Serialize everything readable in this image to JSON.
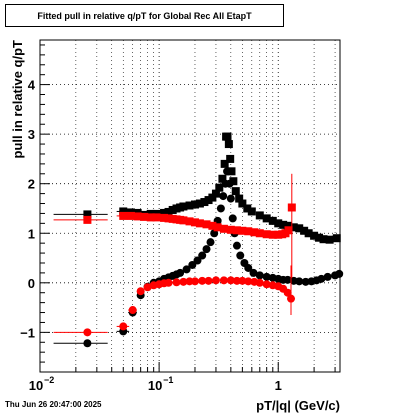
{
  "timestamp": "Thu Jun 26 20:47:00 2025",
  "chart_data": {
    "type": "scatter",
    "title": "Fitted pull in relative q/pT for Global Rec All EtapT",
    "xlabel": "pT/|q| (GeV/c)",
    "ylabel": "pull in relative q/pT",
    "xscale": "log",
    "xlim": [
      0.01,
      3.3
    ],
    "ylim": [
      -1.8,
      4.9
    ],
    "grid": true,
    "x_tick_labels": [
      {
        "value": 0.01,
        "base": "10",
        "exp": "−2"
      },
      {
        "value": 0.1,
        "base": "10",
        "exp": "−1"
      },
      {
        "value": 1,
        "base": "1",
        "exp": ""
      }
    ],
    "y_ticks": [
      -1,
      0,
      1,
      2,
      3,
      4
    ],
    "series": [
      {
        "color": "#000000",
        "marker": "square",
        "points": [
          [
            0.025,
            1.38,
            0.012
          ],
          [
            0.05,
            1.44,
            0.006
          ],
          [
            0.058,
            1.42,
            0.005
          ],
          [
            0.066,
            1.41,
            0.004
          ],
          [
            0.075,
            1.37,
            0.004
          ],
          [
            0.085,
            1.39,
            0.004
          ],
          [
            0.095,
            1.39,
            0.004
          ],
          [
            0.11,
            1.41,
            0.004
          ],
          [
            0.12,
            1.43,
            0.004
          ],
          [
            0.13,
            1.47,
            0.004
          ],
          [
            0.14,
            1.5,
            0.004
          ],
          [
            0.15,
            1.52,
            0.004
          ],
          [
            0.16,
            1.54,
            0.004
          ],
          [
            0.18,
            1.56,
            0.004
          ],
          [
            0.2,
            1.58,
            0.004
          ],
          [
            0.22,
            1.6,
            0.004
          ],
          [
            0.24,
            1.63,
            0.004
          ],
          [
            0.26,
            1.67,
            0.004
          ],
          [
            0.28,
            1.72,
            0.004
          ],
          [
            0.3,
            1.8,
            0.004
          ],
          [
            0.32,
            1.92,
            0.004
          ],
          [
            0.34,
            2.1,
            0.004
          ],
          [
            0.355,
            2.4,
            0.004
          ],
          [
            0.365,
            2.95,
            0.004
          ],
          [
            0.375,
            2.95,
            0.004
          ],
          [
            0.385,
            2.8,
            0.004
          ],
          [
            0.395,
            2.5,
            0.004
          ],
          [
            0.405,
            2.25,
            0.004
          ],
          [
            0.42,
            2.05,
            0.004
          ],
          [
            0.44,
            1.85,
            0.004
          ],
          [
            0.47,
            1.7,
            0.004
          ],
          [
            0.5,
            1.6,
            0.004
          ],
          [
            0.55,
            1.5,
            0.004
          ],
          [
            0.6,
            1.44,
            0.004
          ],
          [
            0.7,
            1.36,
            0.004
          ],
          [
            0.8,
            1.3,
            0.004
          ],
          [
            0.9,
            1.25,
            0.004
          ],
          [
            1.0,
            1.2,
            0.004
          ],
          [
            1.1,
            1.17,
            0.004
          ],
          [
            1.2,
            1.15,
            0.004
          ],
          [
            1.35,
            1.12,
            0.004
          ],
          [
            1.5,
            1.1,
            0.004
          ],
          [
            1.65,
            1.05,
            0.004
          ],
          [
            1.8,
            1.0,
            0.004
          ],
          [
            2.0,
            0.95,
            0.004
          ],
          [
            2.2,
            0.91,
            0.004
          ],
          [
            2.4,
            0.88,
            0.004
          ],
          [
            2.7,
            0.87,
            0.004
          ],
          [
            3.1,
            0.9,
            0.004
          ]
        ]
      },
      {
        "color": "#000000",
        "marker": "circle",
        "points": [
          [
            0.025,
            -1.22,
            0.012
          ],
          [
            0.05,
            -0.98,
            0.006
          ],
          [
            0.06,
            -0.6,
            0.005
          ],
          [
            0.07,
            -0.25,
            0.005
          ],
          [
            0.08,
            -0.08,
            0.005
          ],
          [
            0.09,
            0.0,
            0.004
          ],
          [
            0.1,
            0.03,
            0.004
          ],
          [
            0.11,
            0.08,
            0.004
          ],
          [
            0.12,
            0.11,
            0.004
          ],
          [
            0.13,
            0.14,
            0.004
          ],
          [
            0.14,
            0.17,
            0.004
          ],
          [
            0.15,
            0.2,
            0.004
          ],
          [
            0.17,
            0.27,
            0.004
          ],
          [
            0.19,
            0.36,
            0.004
          ],
          [
            0.21,
            0.45,
            0.004
          ],
          [
            0.23,
            0.55,
            0.004
          ],
          [
            0.25,
            0.68,
            0.004
          ],
          [
            0.27,
            0.82,
            0.004
          ],
          [
            0.29,
            1.0,
            0.004
          ],
          [
            0.31,
            1.25,
            0.004
          ],
          [
            0.33,
            1.5,
            0.004
          ],
          [
            0.345,
            1.75,
            0.004
          ],
          [
            0.36,
            2.0,
            0.004
          ],
          [
            0.372,
            2.25,
            0.004
          ],
          [
            0.38,
            2.25,
            0.004
          ],
          [
            0.39,
            2.0,
            0.004
          ],
          [
            0.4,
            1.7,
            0.004
          ],
          [
            0.415,
            1.3,
            0.004
          ],
          [
            0.43,
            1.0,
            0.004
          ],
          [
            0.45,
            0.75,
            0.004
          ],
          [
            0.48,
            0.55,
            0.004
          ],
          [
            0.52,
            0.4,
            0.004
          ],
          [
            0.56,
            0.3,
            0.004
          ],
          [
            0.62,
            0.2,
            0.004
          ],
          [
            0.7,
            0.15,
            0.004
          ],
          [
            0.8,
            0.12,
            0.004
          ],
          [
            0.9,
            0.1,
            0.004
          ],
          [
            1.0,
            0.08,
            0.004
          ],
          [
            1.1,
            0.06,
            0.004
          ],
          [
            1.2,
            0.06,
            0.004
          ],
          [
            1.35,
            0.04,
            0.004
          ],
          [
            1.5,
            0.03,
            0.004
          ],
          [
            1.7,
            0.02,
            0.004
          ],
          [
            1.9,
            0.03,
            0.004
          ],
          [
            2.1,
            0.05,
            0.004
          ],
          [
            2.3,
            0.08,
            0.004
          ],
          [
            2.6,
            0.12,
            0.004
          ],
          [
            3.0,
            0.15,
            0.004
          ],
          [
            3.25,
            0.18,
            0.004
          ]
        ]
      },
      {
        "color": "#ff0000",
        "marker": "square",
        "points": [
          [
            0.025,
            1.27,
            0.012
          ],
          [
            0.05,
            1.35,
            0.006
          ],
          [
            0.058,
            1.35,
            0.005
          ],
          [
            0.066,
            1.34,
            0.004
          ],
          [
            0.075,
            1.33,
            0.004
          ],
          [
            0.085,
            1.32,
            0.004
          ],
          [
            0.095,
            1.32,
            0.004
          ],
          [
            0.11,
            1.31,
            0.004
          ],
          [
            0.12,
            1.3,
            0.004
          ],
          [
            0.13,
            1.29,
            0.004
          ],
          [
            0.14,
            1.28,
            0.004
          ],
          [
            0.15,
            1.27,
            0.004
          ],
          [
            0.16,
            1.26,
            0.004
          ],
          [
            0.18,
            1.24,
            0.004
          ],
          [
            0.2,
            1.22,
            0.004
          ],
          [
            0.22,
            1.2,
            0.004
          ],
          [
            0.25,
            1.18,
            0.004
          ],
          [
            0.28,
            1.15,
            0.004
          ],
          [
            0.31,
            1.12,
            0.004
          ],
          [
            0.35,
            1.09,
            0.004
          ],
          [
            0.4,
            1.07,
            0.004
          ],
          [
            0.45,
            1.06,
            0.004
          ],
          [
            0.5,
            1.05,
            0.004
          ],
          [
            0.56,
            1.04,
            0.004
          ],
          [
            0.63,
            1.02,
            0.004
          ],
          [
            0.7,
            1.0,
            0.004
          ],
          [
            0.8,
            0.98,
            0.004
          ],
          [
            0.9,
            0.97,
            0.004
          ],
          [
            1.0,
            0.97,
            0.004
          ],
          [
            1.08,
            0.98,
            0.004
          ],
          [
            1.15,
            1.0,
            0.004
          ],
          [
            1.22,
            1.06,
            0.004
          ],
          [
            1.3,
            1.52,
            0.004
          ]
        ]
      },
      {
        "color": "#ff0000",
        "marker": "circle",
        "points": [
          [
            0.025,
            -1.0,
            0.012
          ],
          [
            0.05,
            -0.88,
            0.006
          ],
          [
            0.06,
            -0.55,
            0.005
          ],
          [
            0.07,
            -0.17,
            0.005
          ],
          [
            0.08,
            -0.09,
            0.005
          ],
          [
            0.09,
            -0.05,
            0.004
          ],
          [
            0.1,
            -0.03,
            0.004
          ],
          [
            0.11,
            -0.01,
            0.004
          ],
          [
            0.12,
            0.0,
            0.004
          ],
          [
            0.14,
            0.01,
            0.004
          ],
          [
            0.16,
            0.02,
            0.004
          ],
          [
            0.18,
            0.03,
            0.004
          ],
          [
            0.2,
            0.03,
            0.004
          ],
          [
            0.23,
            0.04,
            0.004
          ],
          [
            0.26,
            0.04,
            0.004
          ],
          [
            0.3,
            0.05,
            0.004
          ],
          [
            0.35,
            0.05,
            0.004
          ],
          [
            0.4,
            0.05,
            0.004
          ],
          [
            0.45,
            0.04,
            0.004
          ],
          [
            0.5,
            0.04,
            0.004
          ],
          [
            0.56,
            0.03,
            0.004
          ],
          [
            0.63,
            0.02,
            0.004
          ],
          [
            0.7,
            0.0,
            0.004
          ],
          [
            0.8,
            -0.03,
            0.004
          ],
          [
            0.9,
            -0.05,
            0.004
          ],
          [
            1.0,
            -0.07,
            0.004
          ],
          [
            1.1,
            -0.12,
            0.004
          ],
          [
            1.2,
            -0.2,
            0.004
          ],
          [
            1.28,
            -0.32,
            0.004
          ]
        ]
      }
    ],
    "error_bars": [
      {
        "color": "#ff0000",
        "x": 1.3,
        "y_low": 0.1,
        "y_high": 2.2
      },
      {
        "color": "#ff0000",
        "x": 1.28,
        "y_low": -0.65,
        "y_high": 0.35
      }
    ]
  }
}
